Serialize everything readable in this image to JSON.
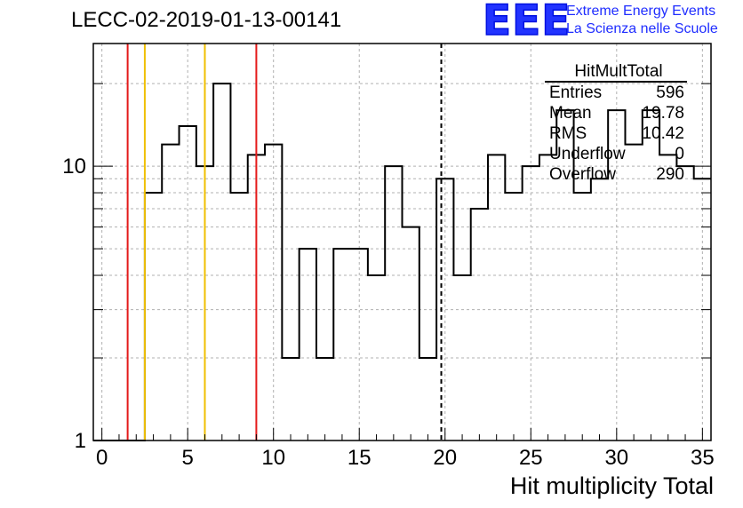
{
  "header": {
    "title": "LECC-02-2019-01-13-00141"
  },
  "logo": {
    "mark": "EEE",
    "line1": "Extreme Energy Events",
    "line2": "La Scienza nelle Scuole",
    "color": "#1f2dff"
  },
  "stats": {
    "title": "HitMultTotal",
    "rows": [
      {
        "key": "Entries",
        "value": "596"
      },
      {
        "key": "Mean",
        "value": "19.78"
      },
      {
        "key": "RMS",
        "value": "10.42"
      },
      {
        "key": "Underflow",
        "value": "0"
      },
      {
        "key": "Overflow",
        "value": "290"
      }
    ]
  },
  "chart_data": {
    "type": "histogram",
    "title": "LECC-02-2019-01-13-00141",
    "xlabel": "Hit multiplicity Total",
    "ylabel": "",
    "xlim": [
      -0.5,
      35.5
    ],
    "ylim": [
      1,
      28
    ],
    "yscale": "log",
    "grid": true,
    "xticks": [
      0,
      5,
      10,
      15,
      20,
      25,
      30,
      35
    ],
    "yticks": [
      1,
      10
    ],
    "bin_width": 1,
    "bins": [
      {
        "x": 0,
        "value": 0
      },
      {
        "x": 1,
        "value": 0
      },
      {
        "x": 2,
        "value": 0
      },
      {
        "x": 3,
        "value": 8
      },
      {
        "x": 4,
        "value": 12
      },
      {
        "x": 5,
        "value": 14
      },
      {
        "x": 6,
        "value": 10
      },
      {
        "x": 7,
        "value": 20
      },
      {
        "x": 8,
        "value": 8
      },
      {
        "x": 9,
        "value": 11
      },
      {
        "x": 10,
        "value": 12
      },
      {
        "x": 11,
        "value": 2
      },
      {
        "x": 12,
        "value": 5
      },
      {
        "x": 13,
        "value": 2
      },
      {
        "x": 14,
        "value": 5
      },
      {
        "x": 15,
        "value": 5
      },
      {
        "x": 16,
        "value": 4
      },
      {
        "x": 17,
        "value": 10
      },
      {
        "x": 18,
        "value": 6
      },
      {
        "x": 19,
        "value": 2
      },
      {
        "x": 20,
        "value": 9
      },
      {
        "x": 21,
        "value": 4
      },
      {
        "x": 22,
        "value": 7
      },
      {
        "x": 23,
        "value": 11
      },
      {
        "x": 24,
        "value": 8
      },
      {
        "x": 25,
        "value": 10
      },
      {
        "x": 26,
        "value": 11
      },
      {
        "x": 27,
        "value": 16
      },
      {
        "x": 28,
        "value": 8
      },
      {
        "x": 29,
        "value": 9
      },
      {
        "x": 30,
        "value": 16
      },
      {
        "x": 31,
        "value": 12
      },
      {
        "x": 32,
        "value": 16
      },
      {
        "x": 33,
        "value": 11
      },
      {
        "x": 34,
        "value": 10
      },
      {
        "x": 35,
        "value": 9
      }
    ],
    "vertical_lines": [
      {
        "x": 1.5,
        "color": "#e41a1a",
        "style": "solid"
      },
      {
        "x": 2.5,
        "color": "#f0c000",
        "style": "solid"
      },
      {
        "x": 6.0,
        "color": "#f0c000",
        "style": "solid"
      },
      {
        "x": 9.0,
        "color": "#e41a1a",
        "style": "solid"
      },
      {
        "x": 19.78,
        "color": "#000000",
        "style": "dashed"
      }
    ]
  }
}
